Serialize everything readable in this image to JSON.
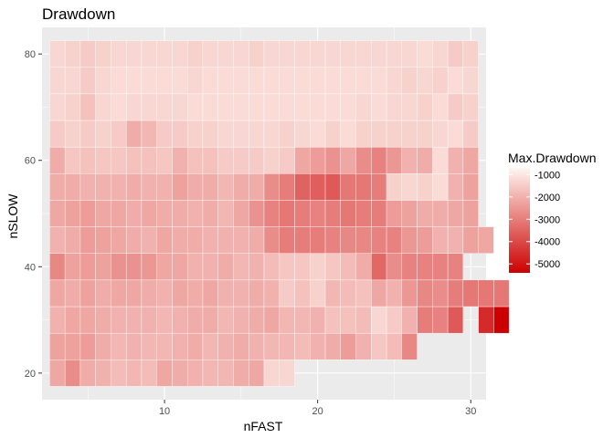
{
  "chart_data": {
    "type": "heatmap",
    "title": "Drawdown",
    "xlabel": "nFAST",
    "ylabel": "nSLOW",
    "xlim": [
      2,
      31
    ],
    "ylim": [
      15,
      85
    ],
    "xticks": [
      10,
      20,
      30
    ],
    "yticks": [
      20,
      40,
      60,
      80
    ],
    "x_step": 1,
    "y_step": 5,
    "grid": true,
    "legend": {
      "title": "Max.Drawdown",
      "position": "right",
      "ticks": [
        -1000,
        -2000,
        -3000,
        -4000,
        -5000
      ],
      "range": [
        -5400,
        -700
      ],
      "color_high": "#fff5f0",
      "color_low": "#cc0000"
    },
    "rows": [
      {
        "y": 20,
        "x_start": 3,
        "values": [
          -2200,
          -2700,
          -2100,
          -2000,
          -1800,
          -1900,
          -1800,
          -2200,
          -2100,
          -2000,
          -1900,
          -1900,
          -2100,
          -2200,
          -1300,
          -1300
        ]
      },
      {
        "y": 25,
        "x_start": 3,
        "values": [
          -2300,
          -2300,
          -2400,
          -2100,
          -1900,
          -2000,
          -1900,
          -1900,
          -2000,
          -2100,
          -1900,
          -2000,
          -2100,
          -2000,
          -1900,
          -1900,
          -1800,
          -2000,
          -2100,
          -2400,
          -2000,
          -1600,
          -1800,
          -2800
        ]
      },
      {
        "y": 30,
        "x_start": 3,
        "values": [
          -2000,
          -2200,
          -2200,
          -2100,
          -2000,
          -2000,
          -2000,
          -1900,
          -2000,
          -2100,
          -2100,
          -1900,
          -2000,
          -2100,
          -2200,
          -1900,
          -1900,
          -2000,
          -1700,
          -1700,
          -1800,
          -1300,
          -1500,
          -2000,
          -3000,
          -2900,
          -3700,
          null,
          -4600,
          -5400
        ]
      },
      {
        "y": 35,
        "x_start": 3,
        "values": [
          -2200,
          -2100,
          -2300,
          -2100,
          -2200,
          -2200,
          -2100,
          -2000,
          -2200,
          -2100,
          -2200,
          -2000,
          -2000,
          -2100,
          -2000,
          -1500,
          -1700,
          -1400,
          -1900,
          -1800,
          -1700,
          -2200,
          -2000,
          -2500,
          -2800,
          -2700,
          -3000,
          -3100,
          -3100,
          -3100
        ]
      },
      {
        "y": 40,
        "x_start": 3,
        "values": [
          -2800,
          -2300,
          -2400,
          -2300,
          -2600,
          -2600,
          -2500,
          -2200,
          -2200,
          -2000,
          -2000,
          -2100,
          -1900,
          -2000,
          -1800,
          -1600,
          -1600,
          -1400,
          -1600,
          -1800,
          -2100,
          -3400,
          -2700,
          -2900,
          -2900,
          -2900,
          -2900
        ]
      },
      {
        "y": 45,
        "x_start": 3,
        "values": [
          -2000,
          -2100,
          -2400,
          -2300,
          -2200,
          -2100,
          -2000,
          -2200,
          -2100,
          -2100,
          -2000,
          -2000,
          -2000,
          -2100,
          -2700,
          -3000,
          -3000,
          -3000,
          -2900,
          -2800,
          -2800,
          -2900,
          -2900,
          -2500,
          -2400,
          -2000,
          -2000,
          -2300,
          -2200
        ]
      },
      {
        "y": 50,
        "x_start": 3,
        "values": [
          -2200,
          -2300,
          -2400,
          -2200,
          -2200,
          -2100,
          -2200,
          -2100,
          -2100,
          -2000,
          -2100,
          -1900,
          -2200,
          -2600,
          -2900,
          -3100,
          -3000,
          -2900,
          -3000,
          -3100,
          -3000,
          -3000,
          -2400,
          -2300,
          -2100,
          -2100,
          -2200,
          -2300
        ]
      },
      {
        "y": 55,
        "x_start": 3,
        "values": [
          -2100,
          -2100,
          -2000,
          -2000,
          -2000,
          -2100,
          -2000,
          -2000,
          -2300,
          -2100,
          -2100,
          -1900,
          -2100,
          -2100,
          -2700,
          -3000,
          -3500,
          -3600,
          -3700,
          -3100,
          -3100,
          -3000,
          -1400,
          -1300,
          -1400,
          -1200,
          -2000,
          -2300
        ]
      },
      {
        "y": 60,
        "x_start": 3,
        "values": [
          -2100,
          -1600,
          -1700,
          -1600,
          -1600,
          -1700,
          -1700,
          -1600,
          -2000,
          -1700,
          -1700,
          -1500,
          -1500,
          -1500,
          -1400,
          -1500,
          -2200,
          -2400,
          -2600,
          -2200,
          -2700,
          -2900,
          -2500,
          -2000,
          -2100,
          -1200,
          -2000,
          -2200
        ]
      },
      {
        "y": 65,
        "x_start": 3,
        "values": [
          -1500,
          -1400,
          -1500,
          -1400,
          -1500,
          -2100,
          -1900,
          -1500,
          -1500,
          -1400,
          -1400,
          -1300,
          -1300,
          -1300,
          -1300,
          -1400,
          -1300,
          -1200,
          -1400,
          -1200,
          -1400,
          -1400,
          -1400,
          -1400,
          -1400,
          -1300,
          -1200,
          -1500
        ]
      },
      {
        "y": 70,
        "x_start": 3,
        "values": [
          -1300,
          -1400,
          -1700,
          -1300,
          -1200,
          -1300,
          -1300,
          -1300,
          -1300,
          -1200,
          -1200,
          -1200,
          -1200,
          -1200,
          -1200,
          -1200,
          -1200,
          -1200,
          -1200,
          -1200,
          -1300,
          -1200,
          -1300,
          -1300,
          -1400,
          -1200,
          -1500,
          -1400
        ]
      },
      {
        "y": 75,
        "x_start": 3,
        "values": [
          -1300,
          -1300,
          -1500,
          -1300,
          -1200,
          -1200,
          -1200,
          -1200,
          -1200,
          -1300,
          -1200,
          -1200,
          -1200,
          -1200,
          -1200,
          -1200,
          -1200,
          -1200,
          -1200,
          -1200,
          -1200,
          -1200,
          -1300,
          -1400,
          -1300,
          -1400,
          -1200,
          -1300
        ]
      },
      {
        "y": 80,
        "x_start": 3,
        "values": [
          -1300,
          -1400,
          -1500,
          -1400,
          -1300,
          -1300,
          -1300,
          -1300,
          -1300,
          -1400,
          -1300,
          -1300,
          -1300,
          -1400,
          -1300,
          -1300,
          -1300,
          -1300,
          -1300,
          -1300,
          -1300,
          -1300,
          -1300,
          -1300,
          -1200,
          -1300,
          -1500,
          -1400
        ]
      }
    ]
  }
}
